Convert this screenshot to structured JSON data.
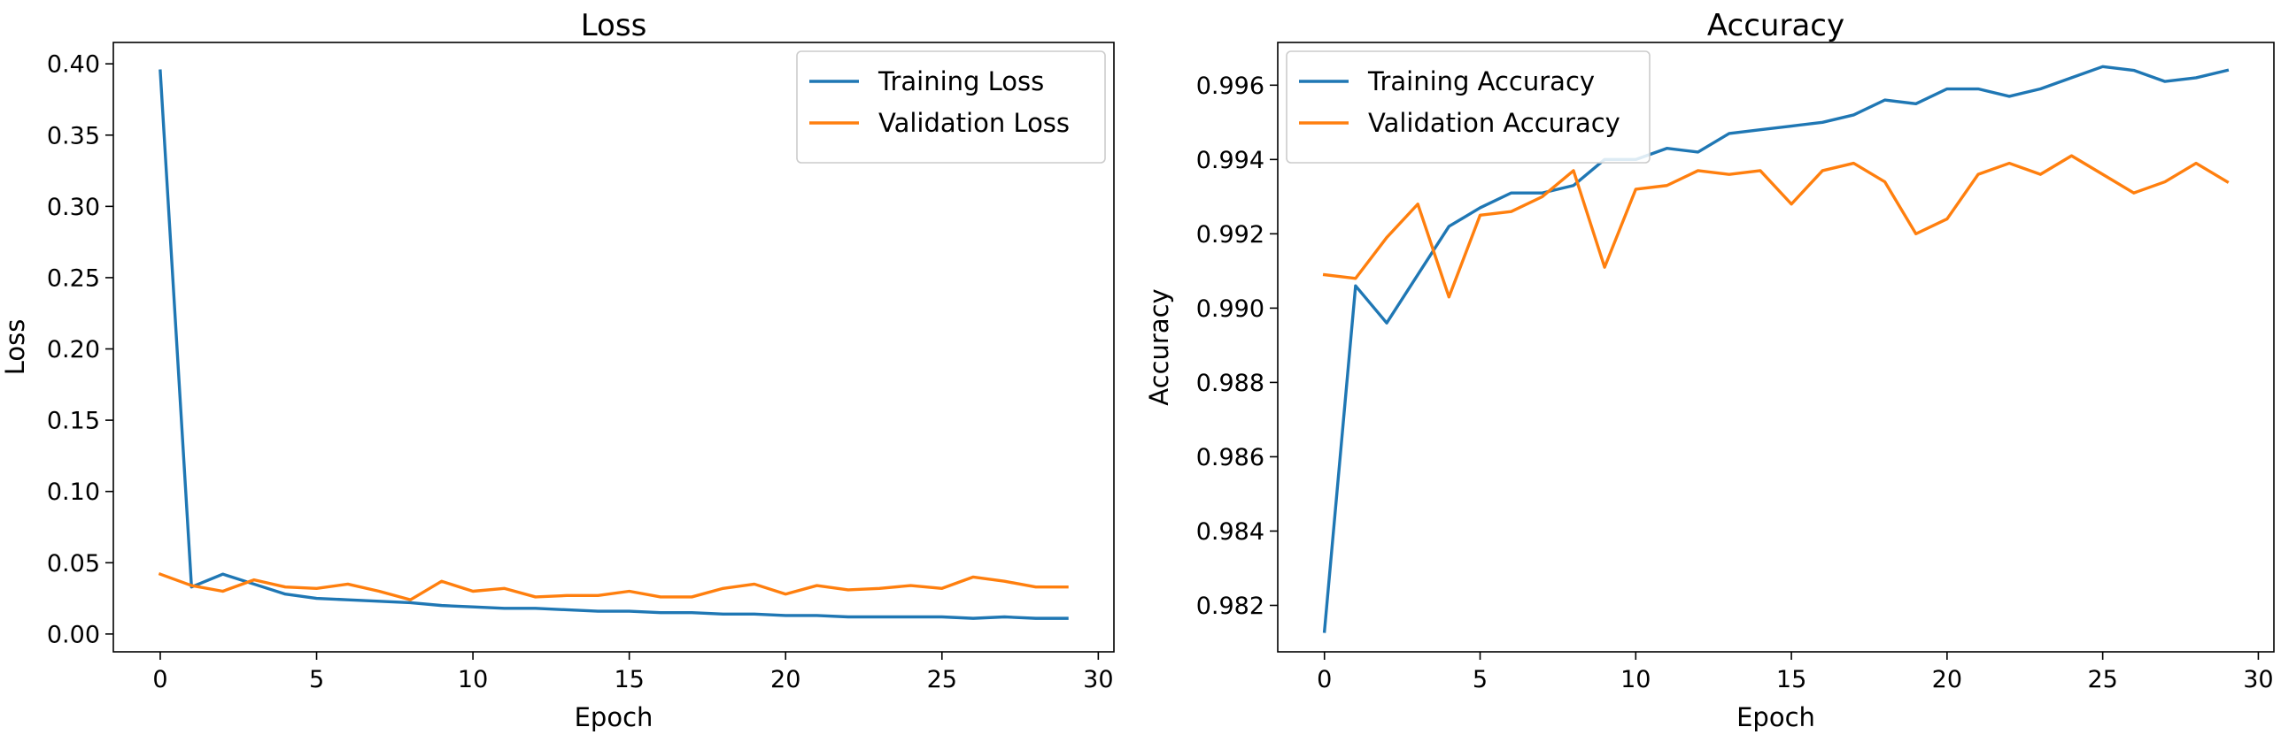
{
  "chart_data": [
    {
      "type": "line",
      "title": "Loss",
      "xlabel": "Epoch",
      "ylabel": "Loss",
      "xlim": [
        -1.5,
        30.5
      ],
      "ylim": [
        -0.0125,
        0.415
      ],
      "xticks": [
        0,
        5,
        10,
        15,
        20,
        25,
        30
      ],
      "yticks": [
        0.0,
        0.05,
        0.1,
        0.15,
        0.2,
        0.25,
        0.3,
        0.35,
        0.4
      ],
      "ytick_labels": [
        "0.00",
        "0.05",
        "0.10",
        "0.15",
        "0.20",
        "0.25",
        "0.30",
        "0.35",
        "0.40"
      ],
      "legend_position": "upper-right",
      "x": [
        0,
        1,
        2,
        3,
        4,
        5,
        6,
        7,
        8,
        9,
        10,
        11,
        12,
        13,
        14,
        15,
        16,
        17,
        18,
        19,
        20,
        21,
        22,
        23,
        24,
        25,
        26,
        27,
        28,
        29
      ],
      "series": [
        {
          "name": "Training Loss",
          "color": "#1f77b4",
          "values": [
            0.395,
            0.033,
            0.042,
            0.035,
            0.028,
            0.025,
            0.024,
            0.023,
            0.022,
            0.02,
            0.019,
            0.018,
            0.018,
            0.017,
            0.016,
            0.016,
            0.015,
            0.015,
            0.014,
            0.014,
            0.013,
            0.013,
            0.012,
            0.012,
            0.012,
            0.012,
            0.011,
            0.012,
            0.011,
            0.011
          ]
        },
        {
          "name": "Validation Loss",
          "color": "#ff7f0e",
          "values": [
            0.042,
            0.034,
            0.03,
            0.038,
            0.033,
            0.032,
            0.035,
            0.03,
            0.024,
            0.037,
            0.03,
            0.032,
            0.026,
            0.027,
            0.027,
            0.03,
            0.026,
            0.026,
            0.032,
            0.035,
            0.028,
            0.034,
            0.031,
            0.032,
            0.034,
            0.032,
            0.04,
            0.037,
            0.033,
            0.033
          ]
        }
      ]
    },
    {
      "type": "line",
      "title": "Accuracy",
      "xlabel": "Epoch",
      "ylabel": "Accuracy",
      "xlim": [
        -1.5,
        30.5
      ],
      "ylim": [
        0.98075,
        0.99715
      ],
      "xticks": [
        0,
        5,
        10,
        15,
        20,
        25,
        30
      ],
      "yticks": [
        0.982,
        0.984,
        0.986,
        0.988,
        0.99,
        0.992,
        0.994,
        0.996
      ],
      "ytick_labels": [
        "0.982",
        "0.984",
        "0.986",
        "0.988",
        "0.990",
        "0.992",
        "0.994",
        "0.996"
      ],
      "legend_position": "upper-left",
      "x": [
        0,
        1,
        2,
        3,
        4,
        5,
        6,
        7,
        8,
        9,
        10,
        11,
        12,
        13,
        14,
        15,
        16,
        17,
        18,
        19,
        20,
        21,
        22,
        23,
        24,
        25,
        26,
        27,
        28,
        29
      ],
      "series": [
        {
          "name": "Training Accuracy",
          "color": "#1f77b4",
          "values": [
            0.9813,
            0.9906,
            0.9896,
            0.9909,
            0.9922,
            0.9927,
            0.9931,
            0.9931,
            0.9933,
            0.994,
            0.994,
            0.9943,
            0.9942,
            0.9947,
            0.9948,
            0.9949,
            0.995,
            0.9952,
            0.9956,
            0.9955,
            0.9959,
            0.9959,
            0.9957,
            0.9959,
            0.9962,
            0.9965,
            0.9964,
            0.9961,
            0.9962,
            0.9964
          ]
        },
        {
          "name": "Validation Accuracy",
          "color": "#ff7f0e",
          "values": [
            0.9909,
            0.9908,
            0.9919,
            0.9928,
            0.9903,
            0.9925,
            0.9926,
            0.993,
            0.9937,
            0.9911,
            0.9932,
            0.9933,
            0.9937,
            0.9936,
            0.9937,
            0.9928,
            0.9937,
            0.9939,
            0.9934,
            0.992,
            0.9924,
            0.9936,
            0.9939,
            0.9936,
            0.9941,
            0.9936,
            0.9931,
            0.9934,
            0.9939,
            0.9934
          ]
        }
      ]
    }
  ]
}
